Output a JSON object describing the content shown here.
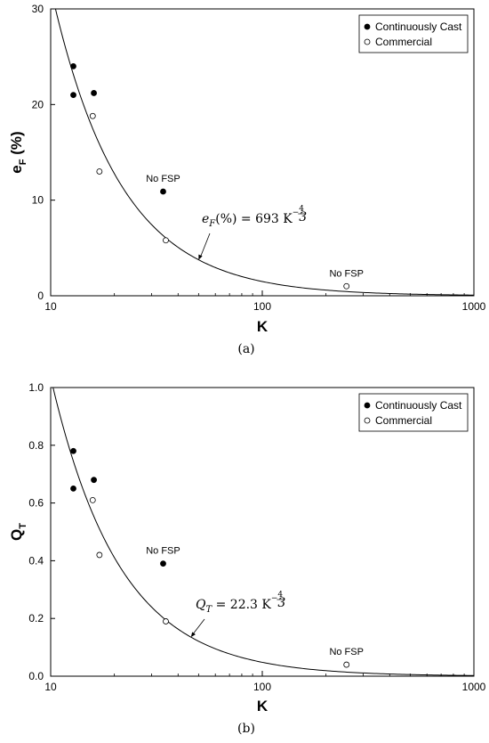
{
  "chart_data": [
    {
      "type": "scatter",
      "panel_label": "(a)",
      "xlabel": "K",
      "ylabel_main": "e",
      "ylabel_sub": "F",
      "ylabel_suffix": " (%)",
      "xscale": "log",
      "xlim": [
        10,
        1000
      ],
      "ylim": [
        0,
        30
      ],
      "xticks": [
        10,
        100,
        1000
      ],
      "yticks": [
        0,
        10,
        20,
        30
      ],
      "series": [
        {
          "name": "Continuously Cast",
          "marker": "filled",
          "x": [
            12.8,
            12.8,
            16,
            34
          ],
          "y": [
            24,
            21,
            21.2,
            10.9
          ]
        },
        {
          "name": "Commercial",
          "marker": "open",
          "x": [
            15.8,
            17,
            35,
            250
          ],
          "y": [
            18.8,
            13,
            5.8,
            1.0
          ]
        }
      ],
      "fit": {
        "coef": 693,
        "exp": -1.3333,
        "label_lhs": "e",
        "label_sub": "F",
        "label_mid": "(%) = 693 K",
        "label_exp_num": "4",
        "label_exp_den": "3"
      },
      "annotations": [
        {
          "text": "No FSP",
          "x": 34,
          "y": 10.9
        },
        {
          "text": "No FSP",
          "x": 250,
          "y": 1.0
        }
      ],
      "legend": "top-right"
    },
    {
      "type": "scatter",
      "panel_label": "(b)",
      "xlabel": "K",
      "ylabel_main": "Q",
      "ylabel_sub": "T",
      "ylabel_suffix": "",
      "xscale": "log",
      "xlim": [
        10,
        1000
      ],
      "ylim": [
        0,
        1.0
      ],
      "xticks": [
        10,
        100,
        1000
      ],
      "yticks": [
        0.0,
        0.2,
        0.4,
        0.6,
        0.8,
        1.0
      ],
      "series": [
        {
          "name": "Continuously Cast",
          "marker": "filled",
          "x": [
            12.8,
            12.8,
            16,
            34
          ],
          "y": [
            0.78,
            0.65,
            0.68,
            0.39
          ]
        },
        {
          "name": "Commercial",
          "marker": "open",
          "x": [
            15.8,
            17,
            35,
            250
          ],
          "y": [
            0.61,
            0.42,
            0.19,
            0.04
          ]
        }
      ],
      "fit": {
        "coef": 22.3,
        "exp": -1.3333,
        "label_lhs": "Q",
        "label_sub": "T",
        "label_mid": " = 22.3 K",
        "label_exp_num": "4",
        "label_exp_den": "3"
      },
      "annotations": [
        {
          "text": "No FSP",
          "x": 34,
          "y": 0.39
        },
        {
          "text": "No FSP",
          "x": 250,
          "y": 0.04
        }
      ],
      "legend": "top-right"
    }
  ]
}
